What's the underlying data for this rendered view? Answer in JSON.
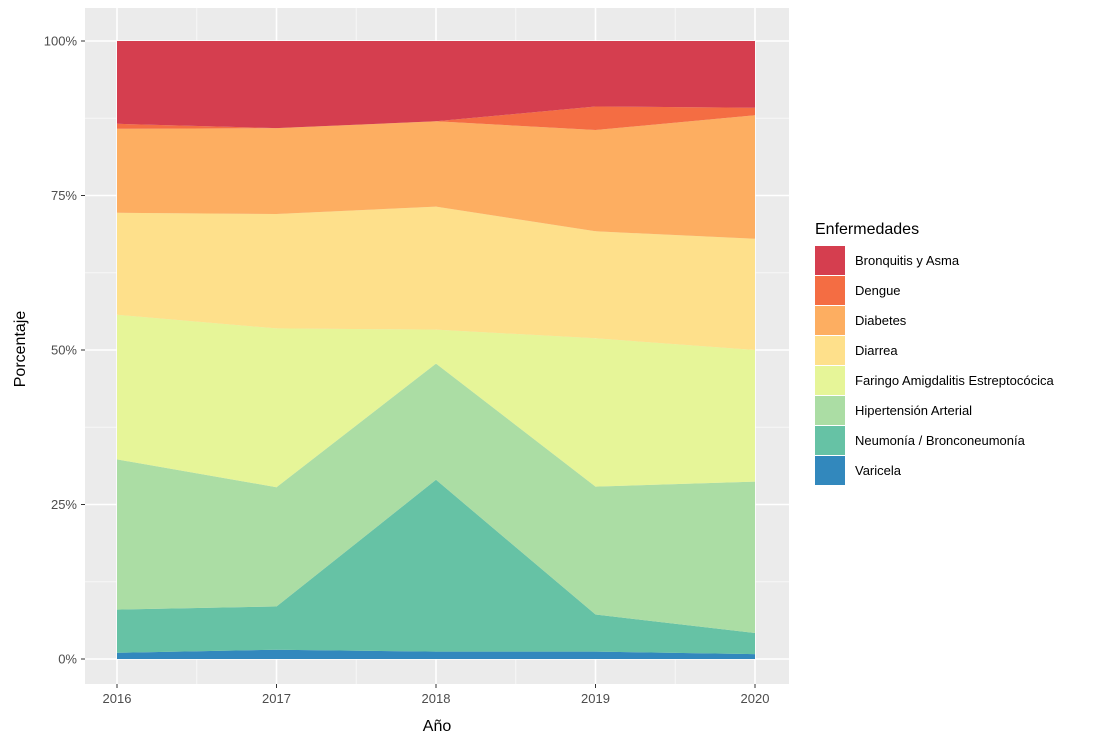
{
  "chart_data": {
    "type": "area",
    "stacking": "percent",
    "x": [
      2016,
      2017,
      2018,
      2019,
      2020
    ],
    "xlabel": "Año",
    "ylabel": "Porcentaje",
    "ylim": [
      0,
      100
    ],
    "y_ticks": [
      "0%",
      "25%",
      "50%",
      "75%",
      "100%"
    ],
    "x_ticks": [
      "2016",
      "2017",
      "2018",
      "2019",
      "2020"
    ],
    "grid": true,
    "legend_title": "Enfermedades",
    "legend_position": "right",
    "series": [
      {
        "name": "Varicela",
        "color": "#3288bd",
        "values": [
          1.0,
          1.5,
          1.2,
          1.2,
          0.8
        ]
      },
      {
        "name": "Neumonía / Bronconeumonía",
        "color": "#66c2a5",
        "values": [
          7.0,
          7.0,
          27.8,
          6.0,
          3.4
        ]
      },
      {
        "name": "Hipertensión Arterial",
        "color": "#abdda4",
        "values": [
          24.3,
          19.3,
          18.8,
          20.7,
          24.5
        ]
      },
      {
        "name": "Faringo Amigdalitis Estreptocócica",
        "color": "#e6f598",
        "values": [
          23.4,
          25.7,
          5.5,
          24.0,
          21.3
        ]
      },
      {
        "name": "Diarrea",
        "color": "#fee08b",
        "values": [
          16.5,
          18.5,
          19.9,
          17.3,
          18.0
        ]
      },
      {
        "name": "Diabetes",
        "color": "#fdae61",
        "values": [
          13.6,
          13.9,
          13.8,
          16.4,
          20.0
        ]
      },
      {
        "name": "Dengue",
        "color": "#f46d43",
        "values": [
          0.8,
          0.0,
          0.0,
          3.8,
          1.2
        ]
      },
      {
        "name": "Bronquitis y Asma",
        "color": "#d53e4f",
        "values": [
          13.4,
          14.1,
          13.0,
          10.6,
          10.8
        ]
      }
    ]
  }
}
